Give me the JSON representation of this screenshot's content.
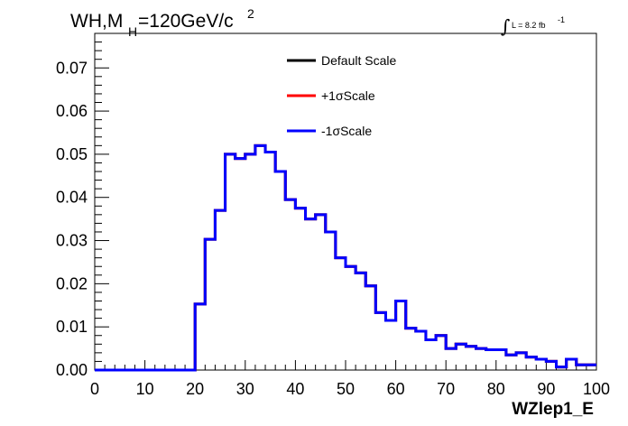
{
  "title": {
    "main_pre": "WH,M",
    "sub": "H",
    "main_post": "=120GeV/c",
    "sup": "2"
  },
  "lumi": {
    "text": "L = 8.2 fb",
    "sup": "-1",
    "integral": "∫"
  },
  "chart_data": {
    "type": "line",
    "style": "step-histogram",
    "xlabel": "WZlep1_E",
    "ylabel": "",
    "xlim": [
      0,
      100
    ],
    "ylim": [
      0,
      0.078
    ],
    "x_ticks": [
      "0",
      "10",
      "20",
      "30",
      "40",
      "50",
      "60",
      "70",
      "80",
      "90",
      "100"
    ],
    "y_ticks": [
      "0.00",
      "0.01",
      "0.02",
      "0.03",
      "0.04",
      "0.05",
      "0.06",
      "0.07"
    ],
    "bin_width": 2,
    "bin_edges_start": 0,
    "legend_position": "top-center",
    "grid": false,
    "series": [
      {
        "name": "Default Scale",
        "color": "#000000",
        "values": [
          0,
          0,
          0,
          0,
          0,
          0,
          0,
          0,
          0,
          0,
          0.0153,
          0.0303,
          0.037,
          0.05,
          0.049,
          0.05,
          0.052,
          0.0505,
          0.046,
          0.0395,
          0.0375,
          0.035,
          0.036,
          0.032,
          0.026,
          0.024,
          0.0225,
          0.0195,
          0.0133,
          0.0115,
          0.016,
          0.0097,
          0.009,
          0.007,
          0.008,
          0.005,
          0.006,
          0.0055,
          0.005,
          0.0047,
          0.0047,
          0.0035,
          0.004,
          0.003,
          0.0025,
          0.002,
          0.0007,
          0.0025,
          0.0012,
          0.0012
        ]
      },
      {
        "name": "+1σScale",
        "color": "#ff0000",
        "values": [
          0,
          0,
          0,
          0,
          0,
          0,
          0,
          0,
          0,
          0,
          0.0153,
          0.0303,
          0.037,
          0.05,
          0.049,
          0.05,
          0.052,
          0.0505,
          0.046,
          0.0395,
          0.0375,
          0.035,
          0.036,
          0.032,
          0.026,
          0.024,
          0.0225,
          0.0195,
          0.0133,
          0.0115,
          0.016,
          0.0097,
          0.009,
          0.007,
          0.008,
          0.005,
          0.006,
          0.0055,
          0.005,
          0.0047,
          0.0047,
          0.0035,
          0.004,
          0.003,
          0.0025,
          0.002,
          0.0007,
          0.0025,
          0.0012,
          0.0012
        ]
      },
      {
        "name": "-1σScale",
        "color": "#0000ff",
        "values": [
          0,
          0,
          0,
          0,
          0,
          0,
          0,
          0,
          0,
          0,
          0.0153,
          0.0303,
          0.037,
          0.05,
          0.049,
          0.05,
          0.052,
          0.0505,
          0.046,
          0.0395,
          0.0375,
          0.035,
          0.036,
          0.032,
          0.026,
          0.024,
          0.0225,
          0.0195,
          0.0133,
          0.0115,
          0.016,
          0.0097,
          0.009,
          0.007,
          0.008,
          0.005,
          0.006,
          0.0055,
          0.005,
          0.0047,
          0.0047,
          0.0035,
          0.004,
          0.003,
          0.0025,
          0.002,
          0.0007,
          0.0025,
          0.0012,
          0.0012
        ]
      }
    ]
  }
}
